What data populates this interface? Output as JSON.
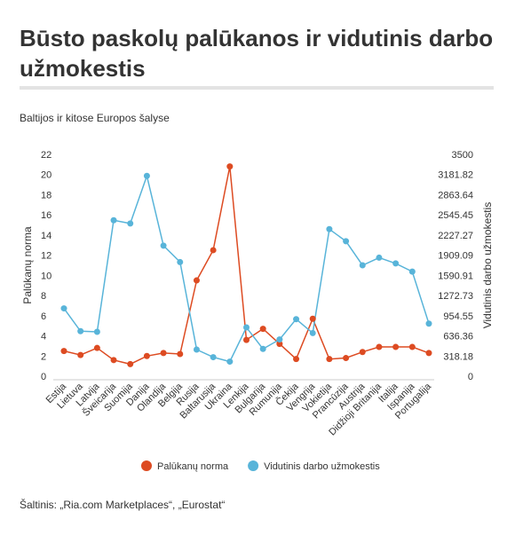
{
  "title": "Būsto paskolų palūkanos ir vidutinis darbo užmokestis",
  "subtitle": "Baltijos ir kitose Europos šalyse",
  "source": "Šaltinis: „Ria.com Marketplaces“, „Eurostat“",
  "chart_data": {
    "type": "line",
    "categories": [
      "Estija",
      "Lietuva",
      "Latvija",
      "Šveicarija",
      "Suomija",
      "Danija",
      "Olandija",
      "Belgija",
      "Rusija",
      "Baltarusija",
      "Ukraina",
      "Lenkija",
      "Bulgarija",
      "Rumunija",
      "Čekija",
      "Vengrija",
      "Vokietija",
      "Prancūzija",
      "Austrija",
      "Didžioji Britanija",
      "Italija",
      "Ispanija",
      "Portugalija"
    ],
    "series": [
      {
        "name": "Palūkanų norma",
        "axis": "left",
        "color": "#dd4b22",
        "values": [
          2.5,
          2.1,
          2.8,
          1.6,
          1.2,
          2.0,
          2.3,
          2.2,
          9.5,
          12.5,
          20.8,
          3.6,
          4.7,
          3.2,
          1.7,
          5.7,
          1.7,
          1.8,
          2.4,
          2.9,
          2.9,
          2.9,
          2.3
        ]
      },
      {
        "name": "Vidutinis darbo užmokestis",
        "axis": "right",
        "color": "#58b4d9",
        "values": [
          1070,
          710,
          700,
          2460,
          2410,
          3160,
          2060,
          1800,
          420,
          300,
          230,
          770,
          430,
          580,
          900,
          680,
          2320,
          2130,
          1750,
          1870,
          1780,
          1650,
          830
        ]
      }
    ],
    "ylabel": "Palūkanų norma",
    "y2label": "Vidutinis darbo užmokestis",
    "ylim": [
      0,
      22
    ],
    "y2lim": [
      0,
      3500
    ],
    "yticks": [
      "0",
      "2",
      "4",
      "6",
      "8",
      "10",
      "12",
      "14",
      "16",
      "18",
      "20",
      "22"
    ],
    "y2ticks": [
      "0",
      "318.18",
      "636.36",
      "954.55",
      "1272.73",
      "1590.91",
      "1909.09",
      "2227.27",
      "2545.45",
      "2863.64",
      "3181.82",
      "3500"
    ],
    "grid": false,
    "legend": "bottom-center"
  }
}
